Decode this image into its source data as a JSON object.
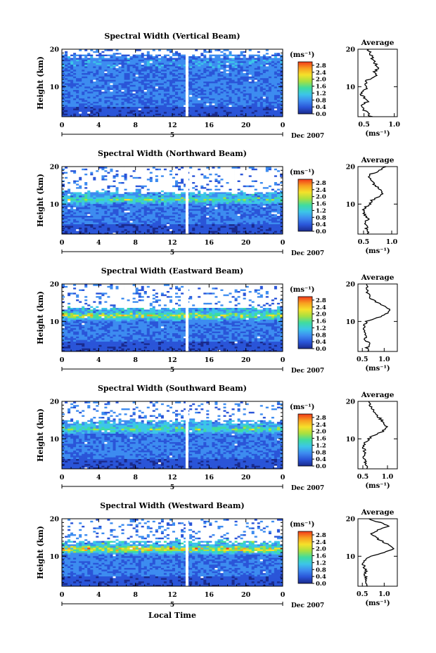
{
  "chart_data": {
    "type": "heatmap",
    "xlabel": "Local Time",
    "date_label": "Dec 2007",
    "day_label": "5",
    "x_ticks": [
      "0",
      "4",
      "8",
      "12",
      "16",
      "20",
      "0"
    ],
    "xlim": [
      0,
      24
    ],
    "ylabel": "Height (km)",
    "y_ticks": [
      "20",
      "10"
    ],
    "ylim": [
      2,
      20
    ],
    "colorbar": {
      "unit": "(ms⁻¹)",
      "ticks": [
        "2.8",
        "2.4",
        "2.0",
        "1.6",
        "1.2",
        "0.8",
        "0.4",
        "0.0"
      ],
      "range": [
        0,
        3.0
      ],
      "colors": [
        "#1a2a8c",
        "#2a55d8",
        "#3d8cf0",
        "#3cc6e8",
        "#3fdca0",
        "#a8e040",
        "#f5e12a",
        "#f8a020",
        "#f23a1a"
      ]
    },
    "data_gap": {
      "local_time_hours": 13.6
    },
    "average_title": "Average",
    "average_xlabel": "(ms⁻¹)",
    "panels": [
      {
        "title": "Spectral Width (Vertical Beam)",
        "average_ticks": [
          "0.5",
          "1.0"
        ],
        "average_xlim": [
          0.4,
          1.05
        ],
        "profile": {
          "height_km": [
            2,
            3,
            4,
            5,
            6,
            7,
            8,
            9,
            10,
            11,
            12,
            13,
            14,
            15,
            16,
            17,
            18,
            19,
            20
          ],
          "width_ms": [
            0.62,
            0.55,
            0.5,
            0.48,
            0.55,
            0.52,
            0.45,
            0.5,
            0.55,
            0.52,
            0.58,
            0.72,
            0.68,
            0.75,
            0.7,
            0.66,
            0.62,
            0.6,
            0.58
          ]
        }
      },
      {
        "title": "Spectral Width (Northward Beam)",
        "average_ticks": [
          "0.5",
          "1.0"
        ],
        "average_xlim": [
          0.4,
          1.1
        ],
        "profile": {
          "height_km": [
            2,
            3,
            4,
            5,
            6,
            7,
            8,
            9,
            10,
            11,
            12,
            13,
            14,
            15,
            16,
            17,
            18,
            19,
            20
          ],
          "width_ms": [
            0.6,
            0.55,
            0.56,
            0.52,
            0.57,
            0.53,
            0.5,
            0.52,
            0.6,
            0.65,
            0.8,
            0.85,
            0.78,
            0.7,
            0.65,
            0.6,
            0.62,
            0.8,
            0.9
          ]
        }
      },
      {
        "title": "Spectral Width (Eastward Beam)",
        "average_ticks": [
          "0.5",
          "1.0"
        ],
        "average_xlim": [
          0.4,
          1.3
        ],
        "profile": {
          "height_km": [
            2,
            3,
            4,
            5,
            6,
            7,
            8,
            9,
            10,
            11,
            12,
            13,
            14,
            15,
            16,
            17,
            18,
            19,
            20
          ],
          "width_ms": [
            0.62,
            0.6,
            0.7,
            0.55,
            0.58,
            0.55,
            0.52,
            0.55,
            0.6,
            0.85,
            1.05,
            1.15,
            1.0,
            0.85,
            0.7,
            0.65,
            0.6,
            0.62,
            0.6
          ]
        }
      },
      {
        "title": "Spectral Width (Southward Beam)",
        "average_ticks": [
          "0.5",
          "1.0"
        ],
        "average_xlim": [
          0.4,
          1.2
        ],
        "profile": {
          "height_km": [
            2,
            3,
            4,
            5,
            6,
            7,
            8,
            9,
            10,
            11,
            12,
            13,
            14,
            15,
            16,
            17,
            18,
            19,
            20
          ],
          "width_ms": [
            0.6,
            0.58,
            0.55,
            0.52,
            0.55,
            0.53,
            0.5,
            0.55,
            0.62,
            0.72,
            0.9,
            1.0,
            0.95,
            0.88,
            0.8,
            0.75,
            0.7,
            0.65,
            0.62
          ]
        }
      },
      {
        "title": "Spectral Width (Westward Beam)",
        "average_ticks": [
          "0.5",
          "1.0"
        ],
        "average_xlim": [
          0.4,
          1.3
        ],
        "profile": {
          "height_km": [
            2,
            3,
            4,
            5,
            6,
            7,
            8,
            9,
            10,
            11,
            12,
            13,
            14,
            15,
            16,
            17,
            18,
            19,
            20
          ],
          "width_ms": [
            0.62,
            0.58,
            0.6,
            0.55,
            0.58,
            0.55,
            0.52,
            0.55,
            0.7,
            1.0,
            1.2,
            1.1,
            0.95,
            0.8,
            0.72,
            0.85,
            1.1,
            0.9,
            0.65
          ]
        }
      }
    ]
  }
}
